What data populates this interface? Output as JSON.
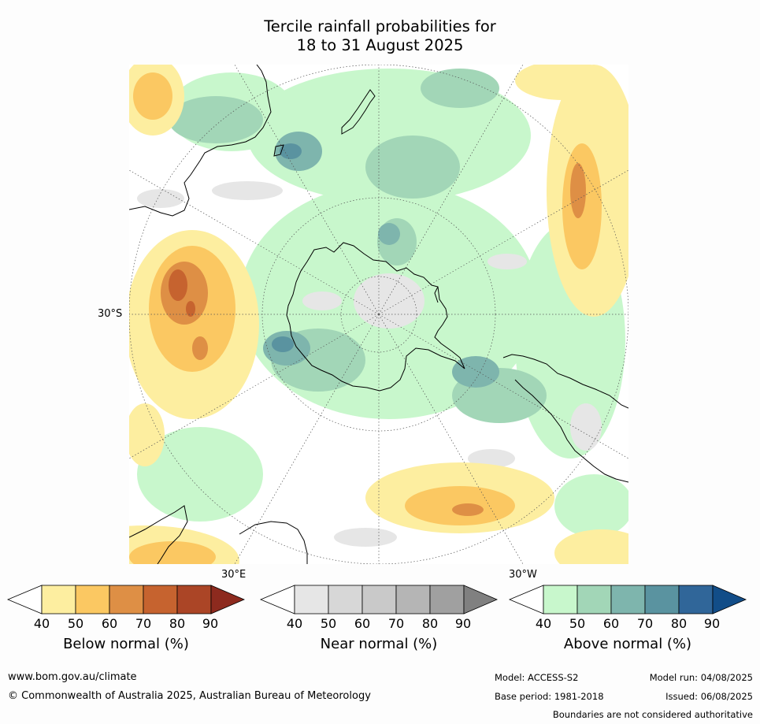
{
  "title": {
    "line1": "Tercile rainfall probabilities for",
    "line2": "18 to 31 August 2025"
  },
  "map": {
    "projection": "south-polar-stereographic",
    "lat_label": "30°S",
    "lon_labels": {
      "east": "30°E",
      "west": "30°W"
    }
  },
  "colorbars": [
    {
      "id": "below",
      "label": "Below normal (%)",
      "ticks": [
        "40",
        "50",
        "60",
        "70",
        "80",
        "90"
      ],
      "colors": [
        "#fdeea0",
        "#fbc862",
        "#de8f45",
        "#c6632f",
        "#ab4526",
        "#8d2a1e"
      ]
    },
    {
      "id": "near",
      "label": "Near normal (%)",
      "ticks": [
        "40",
        "50",
        "60",
        "70",
        "80",
        "90"
      ],
      "colors": [
        "#e6e6e6",
        "#d7d7d7",
        "#c9c9c9",
        "#b5b5b5",
        "#a0a0a0",
        "#808080"
      ]
    },
    {
      "id": "above",
      "label": "Above normal (%)",
      "ticks": [
        "40",
        "50",
        "60",
        "70",
        "80",
        "90"
      ],
      "colors": [
        "#c8f7cc",
        "#a2d6b7",
        "#7eb5ad",
        "#5a93a0",
        "#306699",
        "#124d88"
      ]
    }
  ],
  "footer": {
    "website": "www.bom.gov.au/climate",
    "copyright": "© Commonwealth of Australia 2025, Australian Bureau of Meteorology",
    "model": "Model: ACCESS-S2",
    "model_run": "Model run: 04/08/2025",
    "base_period": "Base period: 1981-2018",
    "issued": "Issued: 06/08/2025",
    "disclaimer": "Boundaries are not considered authoritative"
  }
}
